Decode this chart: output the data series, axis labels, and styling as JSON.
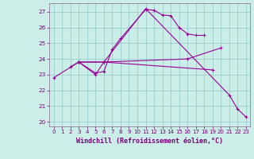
{
  "bg_color": "#cceee8",
  "grid_color": "#99cccc",
  "line_color": "#990099",
  "spine_color": "#886688",
  "x_ticks": [
    0,
    1,
    2,
    3,
    4,
    5,
    6,
    7,
    8,
    9,
    10,
    11,
    12,
    13,
    14,
    15,
    16,
    17,
    18,
    19,
    20,
    21,
    22,
    23
  ],
  "y_ticks": [
    20,
    21,
    22,
    23,
    24,
    25,
    26,
    27
  ],
  "ylim": [
    19.7,
    27.55
  ],
  "xlim": [
    -0.5,
    23.5
  ],
  "xlabel": "Windchill (Refroidissement éolien,°C)",
  "lines": [
    {
      "x": [
        2,
        3,
        5,
        6,
        7,
        8,
        11,
        12,
        13,
        14,
        15,
        16,
        17,
        18
      ],
      "y": [
        23.5,
        23.8,
        23.1,
        23.2,
        24.6,
        25.3,
        27.15,
        27.1,
        26.8,
        26.75,
        26.0,
        25.6,
        25.5,
        25.5
      ]
    },
    {
      "x": [
        0,
        3,
        5,
        6,
        11,
        21,
        22,
        23
      ],
      "y": [
        22.8,
        23.8,
        23.0,
        23.8,
        27.2,
        21.7,
        20.8,
        20.3
      ]
    },
    {
      "x": [
        3,
        6,
        19
      ],
      "y": [
        23.8,
        23.8,
        23.3
      ]
    },
    {
      "x": [
        3,
        6,
        16,
        20
      ],
      "y": [
        23.8,
        23.8,
        24.0,
        24.7
      ]
    }
  ]
}
